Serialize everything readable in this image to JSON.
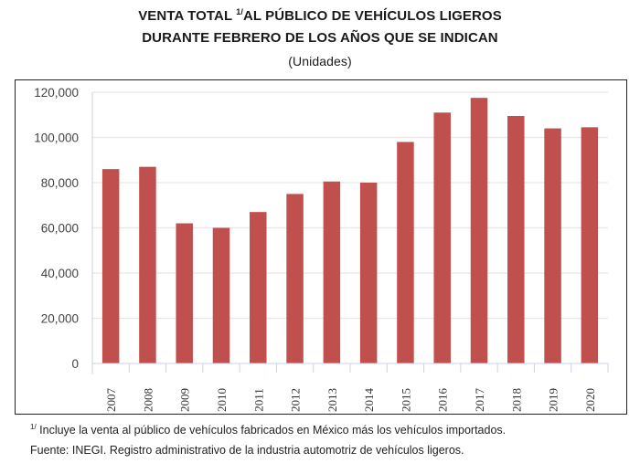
{
  "chart_data": {
    "type": "bar",
    "title_line1_sup": "1/",
    "title_line1_pre": "VENTA TOTAL ",
    "title_line1_post": "AL PÚBLICO DE VEHÍCULOS LIGEROS",
    "title_line2": "DURANTE FEBRERO DE LOS AÑOS QUE SE INDICAN",
    "subtitle": "(Unidades)",
    "xlabel": "",
    "ylabel": "",
    "ylim": [
      0,
      120000
    ],
    "yticks": [
      0,
      20000,
      40000,
      60000,
      80000,
      100000,
      120000
    ],
    "ytick_labels": [
      "0",
      "20,000",
      "40,000",
      "60,000",
      "80,000",
      "100,000",
      "120,000"
    ],
    "grid": true,
    "bar_color": "#c0504d",
    "categories": [
      "2007",
      "2008",
      "2009",
      "2010",
      "2011",
      "2012",
      "2013",
      "2014",
      "2015",
      "2016",
      "2017",
      "2018",
      "2019",
      "2020"
    ],
    "values": [
      86000,
      87000,
      62000,
      60000,
      67000,
      75000,
      80500,
      80000,
      98000,
      111000,
      117500,
      109500,
      104000,
      104500
    ]
  },
  "footnotes": {
    "note_sup": "1/",
    "note_text": " Incluye la venta al público de vehículos fabricados en México más los vehículos importados.",
    "source": "Fuente: INEGI. Registro administrativo de la industria automotriz de vehículos ligeros."
  }
}
